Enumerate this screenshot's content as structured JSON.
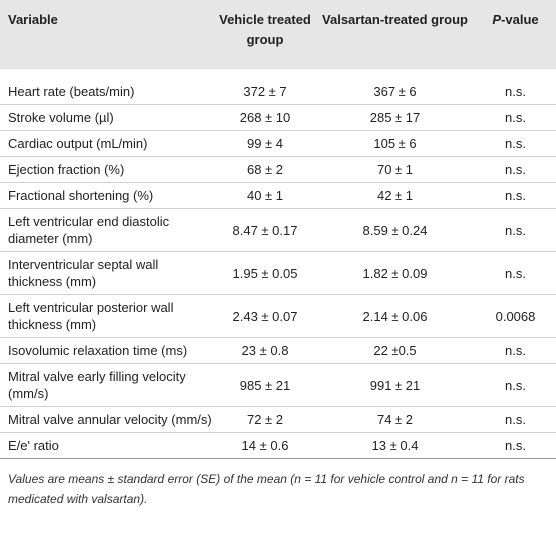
{
  "table": {
    "columns": [
      "Variable",
      "Vehicle treated group",
      "Valsartan-treated group",
      [
        "P",
        "-value"
      ]
    ],
    "rows": [
      [
        "Heart rate (beats/min)",
        "372 ± 7",
        "367 ± 6",
        "n.s."
      ],
      [
        "Stroke volume (µl)",
        "268 ± 10",
        "285 ± 17",
        "n.s."
      ],
      [
        "Cardiac output (mL/min)",
        "99 ± 4",
        "105 ± 6",
        "n.s."
      ],
      [
        "Ejection fraction (%)",
        "68 ± 2",
        "70 ± 1",
        "n.s."
      ],
      [
        "Fractional shortening (%)",
        "40 ± 1",
        "42 ± 1",
        "n.s."
      ],
      [
        "Left ventricular end diastolic diameter (mm)",
        "8.47 ± 0.17",
        "8.59 ± 0.24",
        "n.s."
      ],
      [
        "Interventricular septal wall thickness (mm)",
        "1.95 ± 0.05",
        "1.82 ± 0.09",
        "n.s."
      ],
      [
        "Left ventricular posterior wall thickness (mm)",
        "2.43 ± 0.07",
        "2.14 ± 0.06",
        "0.0068"
      ],
      [
        "Isovolumic relaxation time (ms)",
        "23 ± 0.8",
        "22 ±0.5",
        "n.s."
      ],
      [
        "Mitral valve early filling velocity (mm/s)",
        "985 ± 21",
        "991 ± 21",
        "n.s."
      ],
      [
        "Mitral valve annular velocity (mm/s)",
        "72 ± 2",
        "74 ± 2",
        "n.s."
      ],
      [
        "E/e' ratio",
        "14 ± 0.6",
        "13 ± 0.4",
        "n.s."
      ]
    ]
  },
  "footnote": "Values are means ± standard error (SE) of the mean (n = 11 for vehicle control and n = 11 for rats medicated with valsartan)."
}
